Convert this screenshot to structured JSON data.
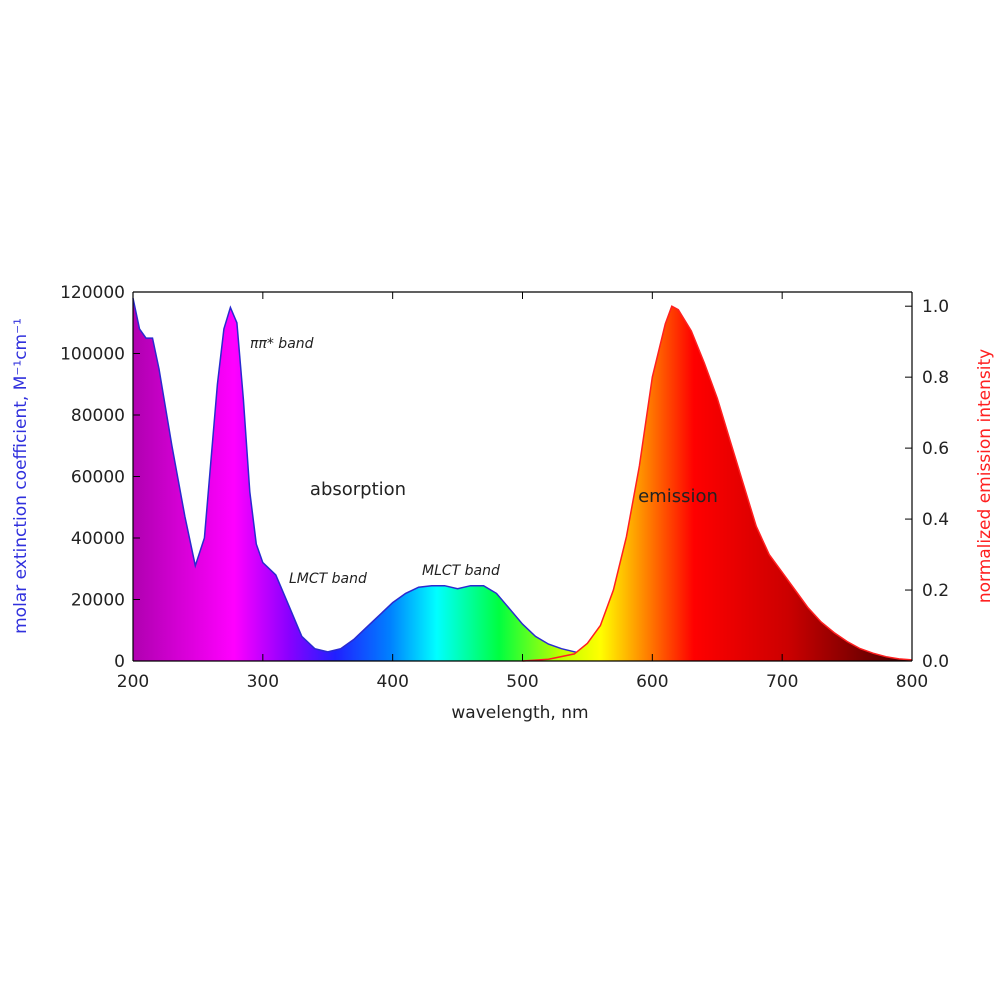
{
  "chart_data": {
    "type": "area",
    "x_label": "wavelength, nm",
    "y_label": "molar extinction coefficient, M⁻¹cm⁻¹",
    "y2_label": "normalized emission intensity",
    "xlim": [
      200,
      800
    ],
    "xticks": [
      200,
      300,
      400,
      500,
      600,
      700,
      800
    ],
    "ylim": [
      0,
      120000
    ],
    "yticks": [
      0,
      20000,
      40000,
      60000,
      80000,
      100000,
      120000
    ],
    "y2lim": [
      0,
      1.04
    ],
    "y2ticks": [
      {
        "value": 0,
        "label": "0.0"
      },
      0.2,
      0.4,
      0.6,
      0.8,
      {
        "value": 1,
        "label": "1.0"
      }
    ],
    "series": [
      {
        "name": "absorption",
        "color": "#2a2ad0",
        "axis": "y",
        "x": [
          200,
          205,
          210,
          215,
          220,
          230,
          240,
          248,
          255,
          260,
          265,
          270,
          275,
          280,
          285,
          290,
          295,
          300,
          310,
          320,
          330,
          340,
          350,
          360,
          370,
          380,
          390,
          400,
          410,
          420,
          430,
          440,
          450,
          460,
          470,
          480,
          490,
          500,
          510,
          520,
          530,
          540,
          550,
          560,
          570,
          580
        ],
        "values": [
          118000,
          108000,
          105000,
          105000,
          95000,
          70000,
          47000,
          31000,
          40000,
          65000,
          90000,
          108000,
          115000,
          110000,
          85000,
          55000,
          38000,
          32000,
          28000,
          18000,
          8000,
          4000,
          3000,
          4000,
          7000,
          11000,
          15000,
          19000,
          22000,
          24000,
          24500,
          24500,
          23500,
          24500,
          24500,
          22000,
          17000,
          12000,
          8000,
          5500,
          4000,
          3000,
          2000,
          1500,
          800,
          300
        ]
      },
      {
        "name": "emission",
        "color": "#ff2020",
        "axis": "y2",
        "x": [
          500,
          520,
          540,
          550,
          560,
          570,
          580,
          590,
          600,
          610,
          615,
          620,
          630,
          640,
          650,
          660,
          670,
          680,
          690,
          700,
          710,
          720,
          730,
          740,
          750,
          760,
          770,
          780,
          790,
          800
        ],
        "values": [
          0,
          0.005,
          0.02,
          0.05,
          0.1,
          0.2,
          0.35,
          0.55,
          0.8,
          0.95,
          1.0,
          0.99,
          0.93,
          0.84,
          0.74,
          0.62,
          0.5,
          0.38,
          0.3,
          0.25,
          0.2,
          0.15,
          0.11,
          0.08,
          0.055,
          0.035,
          0.022,
          0.012,
          0.006,
          0.003
        ]
      }
    ],
    "annotations": [
      "ππ* band",
      "LMCT band",
      "MLCT band"
    ]
  }
}
